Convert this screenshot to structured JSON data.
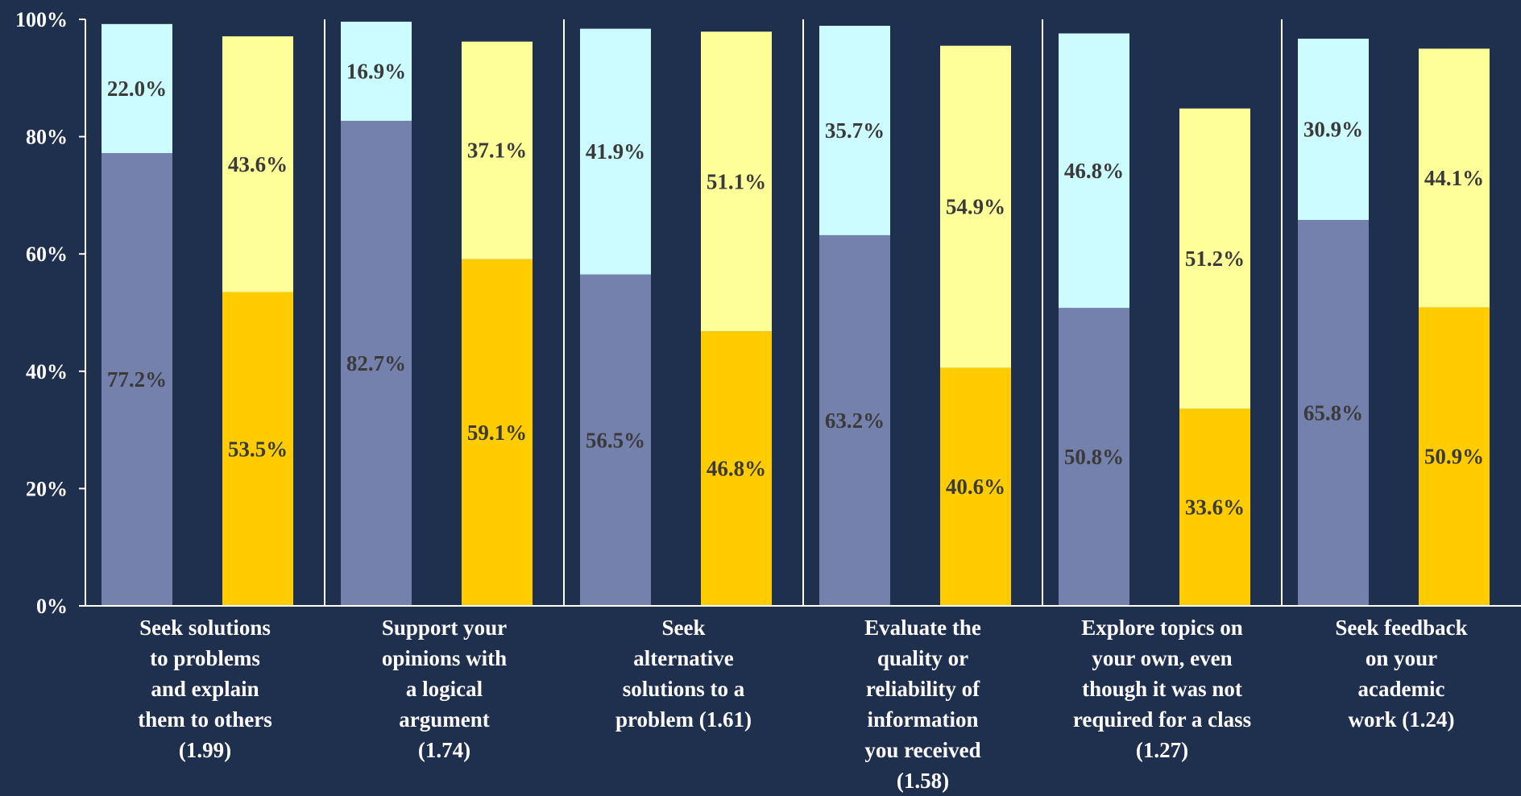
{
  "chart_data": {
    "type": "bar",
    "stacked": true,
    "title": "",
    "xlabel": "",
    "ylabel": "",
    "ylim": [
      0,
      100
    ],
    "y_ticks": [
      "0%",
      "20%",
      "40%",
      "60%",
      "80%",
      "100%"
    ],
    "grid": false,
    "legend": "none",
    "categories": [
      "Seek solutions to problems and explain them to others (1.99)",
      "Support your opinions with a logical argument (1.74)",
      "Seek alternative solutions to a problem (1.61)",
      "Evaluate the quality or reliability of information you received (1.58)",
      "Explore topics on your own, even though it was not required for a class (1.27)",
      "Seek feedback on your academic work (1.24)"
    ],
    "category_lines": [
      [
        "Seek solutions",
        "to problems",
        "and explain",
        "them to others",
        "(1.99)"
      ],
      [
        "Support your",
        "opinions with",
        "a logical",
        "argument",
        "(1.74)"
      ],
      [
        "Seek",
        "alternative",
        "solutions to a",
        "problem (1.61)"
      ],
      [
        "Evaluate the",
        "quality or",
        "reliability of",
        "information",
        "you received",
        "(1.58)"
      ],
      [
        "Explore topics on",
        "your own, even",
        "though it was not",
        "required for a class",
        "(1.27)"
      ],
      [
        "Seek feedback",
        "on your",
        "academic",
        "work (1.24)"
      ]
    ],
    "bars": [
      {
        "group": "blue",
        "bottom": [
          77.2,
          82.7,
          56.5,
          63.2,
          50.8,
          65.8
        ],
        "top": [
          22.0,
          16.9,
          41.9,
          35.7,
          46.8,
          30.9
        ],
        "bottom_labels": [
          "77.2%",
          "82.7%",
          "56.5%",
          "63.2%",
          "50.8%",
          "65.8%"
        ],
        "top_labels": [
          "22.0%",
          "16.9%",
          "41.9%",
          "35.7%",
          "46.8%",
          "30.9%"
        ]
      },
      {
        "group": "gold",
        "bottom": [
          53.5,
          59.1,
          46.8,
          40.6,
          33.6,
          50.9
        ],
        "top": [
          43.6,
          37.1,
          51.1,
          54.9,
          51.2,
          44.1
        ],
        "bottom_labels": [
          "53.5%",
          "59.1%",
          "46.8%",
          "40.6%",
          "33.6%",
          "50.9%"
        ],
        "top_labels": [
          "43.6%",
          "37.1%",
          "51.1%",
          "54.9%",
          "51.2%",
          "44.1%"
        ]
      }
    ],
    "colors": {
      "background": "#1f2f4e",
      "blue_bottom": "#7581ad",
      "blue_top": "#ccfcff",
      "gold_bottom": "#ffcc00",
      "gold_top": "#ffff99",
      "axis": "#ffffff",
      "label_text": "#3a3a3a"
    }
  }
}
